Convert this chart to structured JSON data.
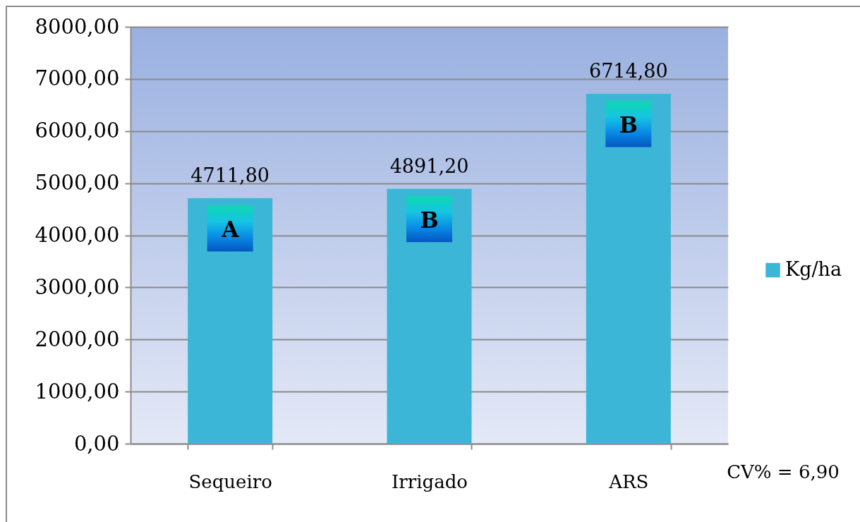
{
  "chart_data": {
    "type": "bar",
    "categories": [
      "Sequeiro",
      "Irrigado",
      "ARS"
    ],
    "series": [
      {
        "name": "Kg/ha",
        "color": "#3cb6d6",
        "values": [
          4711.8,
          4891.2,
          6714.8
        ],
        "value_labels": [
          "4711,80",
          "4891,20",
          "6714,80"
        ]
      }
    ],
    "ylim": [
      0,
      8000
    ],
    "yticks": [
      {
        "value": 0,
        "label": "0,00"
      },
      {
        "value": 1000,
        "label": "1000,00"
      },
      {
        "value": 2000,
        "label": "2000,00"
      },
      {
        "value": 3000,
        "label": "3000,00"
      },
      {
        "value": 4000,
        "label": "4000,00"
      },
      {
        "value": 5000,
        "label": "5000,00"
      },
      {
        "value": 6000,
        "label": "6000,00"
      },
      {
        "value": 7000,
        "label": "7000,00"
      },
      {
        "value": 8000,
        "label": "8000,00"
      }
    ],
    "grid": "y",
    "legend": "right",
    "annotations": [
      "A",
      "B",
      "B",
      "CV% = 6,90"
    ]
  }
}
